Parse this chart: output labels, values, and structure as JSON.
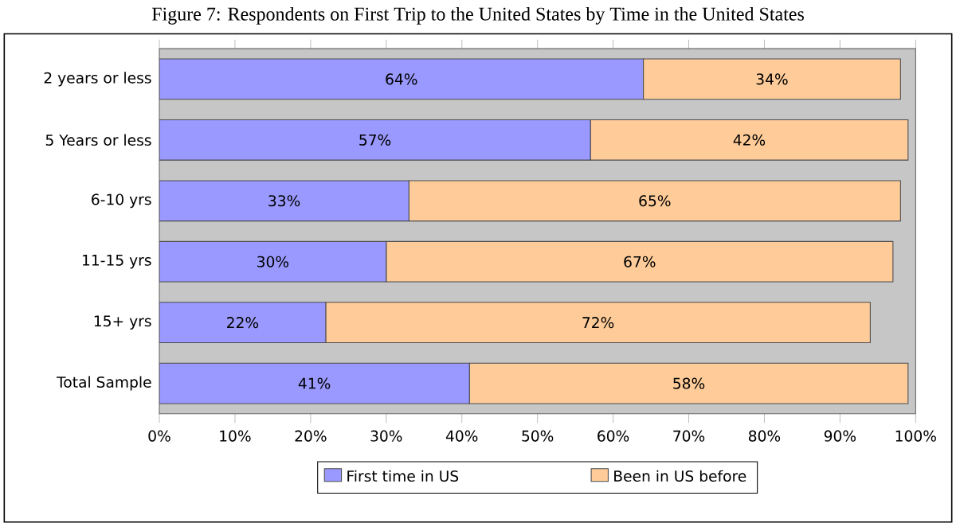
{
  "chart_data": {
    "type": "bar",
    "orientation": "horizontal",
    "stacked": true,
    "title": "Figure 7: Respondents on First Trip to the United States by Time in the United States",
    "categories": [
      "2 years or less",
      "5  Years or less",
      "6-10 yrs",
      "11-15 yrs",
      "15+ yrs",
      "Total Sample"
    ],
    "series": [
      {
        "name": "First time in US",
        "color": "#9999ff",
        "values": [
          64,
          57,
          33,
          30,
          22,
          41
        ],
        "value_labels": [
          "64%",
          "57%",
          "33%",
          "30%",
          "22%",
          "41%"
        ]
      },
      {
        "name": "Been in US before",
        "color": "#ffcc99",
        "values": [
          34,
          42,
          65,
          67,
          72,
          58
        ],
        "value_labels": [
          "34%",
          "42%",
          "65%",
          "67%",
          "72%",
          "58%"
        ]
      }
    ],
    "xlim": [
      0,
      100
    ],
    "xticks": [
      {
        "value": 0,
        "label": "0%"
      },
      {
        "value": 10,
        "label": "10%"
      },
      {
        "value": 20,
        "label": "20%"
      },
      {
        "value": 30,
        "label": "30%"
      },
      {
        "value": 40,
        "label": "40%"
      },
      {
        "value": 50,
        "label": "50%"
      },
      {
        "value": 60,
        "label": "60%"
      },
      {
        "value": 70,
        "label": "70%"
      },
      {
        "value": 80,
        "label": "80%"
      },
      {
        "value": 90,
        "label": "90%"
      },
      {
        "value": 100,
        "label": "100%"
      }
    ],
    "legend": "bottom"
  }
}
